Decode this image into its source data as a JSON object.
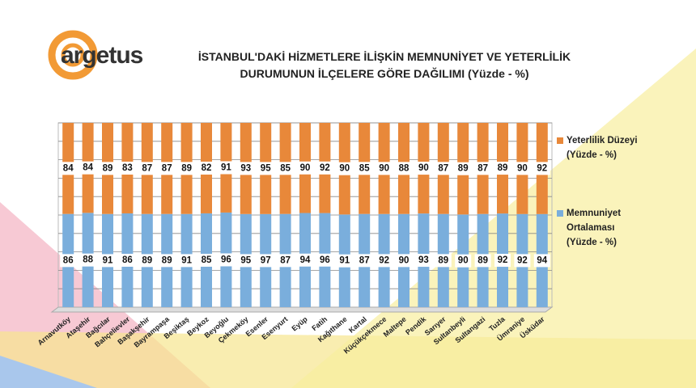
{
  "logo": "argetus",
  "chart_data": {
    "type": "bar",
    "stacking": "percent",
    "title": "İSTANBUL'DAKİ HİZMETLERE İLİŞKİN MEMNUNİYET VE YETERLİLİK DURUMUNUN İLÇELERE GÖRE DAĞILIMI (Yüzde - %)",
    "categories": [
      "Arnavutköy",
      "Ataşehir",
      "Bağcılar",
      "Bahçelievler",
      "Başakşehir",
      "Bayrampaşa",
      "Beşiktaş",
      "Beykoz",
      "Beyoğlu",
      "Çekmeköy",
      "Esenler",
      "Esenyurt",
      "Eyüp",
      "Fatih",
      "Kağıthane",
      "Kartal",
      "Küçükçekmece",
      "Maltepe",
      "Pendik",
      "Sarıyer",
      "Sultanbeyli",
      "Sultangazi",
      "Tuzla",
      "Ümraniye",
      "Üsküdar"
    ],
    "series": [
      {
        "name": "Memnuniyet Ortalaması (Yüzde - %)",
        "color": "#7aaedc",
        "values": [
          86,
          88,
          91,
          86,
          89,
          89,
          91,
          85,
          96,
          95,
          97,
          87,
          94,
          96,
          91,
          87,
          92,
          90,
          93,
          89,
          90,
          89,
          92,
          92,
          94
        ]
      },
      {
        "name": "Yeterlilik Düzeyi (Yüzde - %)",
        "color": "#e8883a",
        "values": [
          84,
          84,
          89,
          83,
          87,
          87,
          89,
          82,
          91,
          93,
          95,
          85,
          90,
          92,
          90,
          85,
          90,
          88,
          90,
          87,
          89,
          87,
          89,
          90,
          92
        ]
      }
    ],
    "ylim": [
      0,
      100
    ],
    "yticks": [
      0,
      10,
      20,
      30,
      40,
      50,
      60,
      70,
      80,
      90,
      100
    ],
    "grid": true
  }
}
